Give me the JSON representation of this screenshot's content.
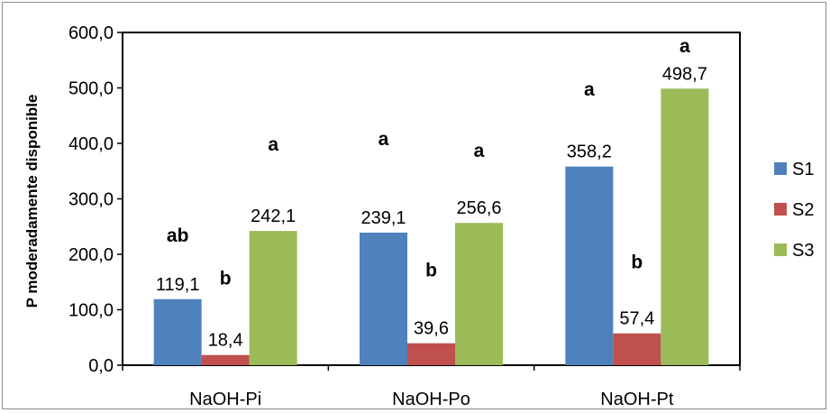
{
  "chart_data": {
    "type": "bar",
    "title": "",
    "xlabel": "",
    "ylabel": "P moderadamente disponible",
    "categories": [
      "NaOH-Pi",
      "NaOH-Po",
      "NaOH-Pt"
    ],
    "ylim": [
      0,
      600
    ],
    "yticks": [
      "0,0",
      "100,0",
      "200,0",
      "300,0",
      "400,0",
      "500,0",
      "600,0"
    ],
    "ytick_values": [
      0,
      100,
      200,
      300,
      400,
      500,
      600
    ],
    "grid": false,
    "legend_position": "right",
    "series": [
      {
        "name": "S1",
        "color": "#4f81bd",
        "values": [
          119.1,
          239.1,
          358.2
        ],
        "labels": [
          "119,1",
          "239,1",
          "358,2"
        ],
        "letters": [
          "ab",
          "a",
          "a"
        ]
      },
      {
        "name": "S2",
        "color": "#c0504d",
        "values": [
          18.4,
          39.6,
          57.4
        ],
        "labels": [
          "18,4",
          "39,6",
          "57,4"
        ],
        "letters": [
          "b",
          "b",
          "b"
        ]
      },
      {
        "name": "S3",
        "color": "#9bbb59",
        "values": [
          242.1,
          256.6,
          498.7
        ],
        "labels": [
          "242,1",
          "256,6",
          "498,7"
        ],
        "letters": [
          "a",
          "a",
          "a"
        ]
      }
    ]
  }
}
